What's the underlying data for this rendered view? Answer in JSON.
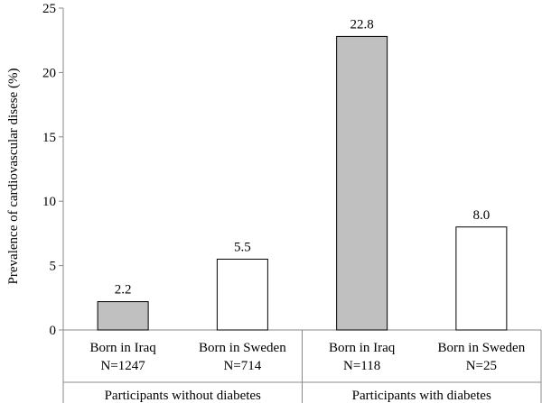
{
  "chart_data": {
    "type": "bar",
    "ylabel": "Prevalence of cardiovascular disese (%)",
    "ylim": [
      0,
      25
    ],
    "yticks": [
      "0",
      "5",
      "10",
      "15",
      "20",
      "25"
    ],
    "grid": false,
    "categories": [
      {
        "line1": "Born in Iraq",
        "line2": "N=1247"
      },
      {
        "line1": "Born in Sweden",
        "line2": "N=714"
      },
      {
        "line1": "Born in Iraq",
        "line2": "N=118"
      },
      {
        "line1": "Born in Sweden",
        "line2": "N=25"
      }
    ],
    "values": [
      2.2,
      5.5,
      22.8,
      8.0
    ],
    "value_labels": [
      "2.2",
      "5.5",
      "22.8",
      "8.0"
    ],
    "bar_colors": [
      "#c0c0c0",
      "#ffffff",
      "#c0c0c0",
      "#ffffff"
    ],
    "groups": [
      {
        "label": "Participants without diabetes",
        "members": [
          0,
          1
        ]
      },
      {
        "label": "Participants with diabetes",
        "members": [
          2,
          3
        ]
      }
    ]
  }
}
